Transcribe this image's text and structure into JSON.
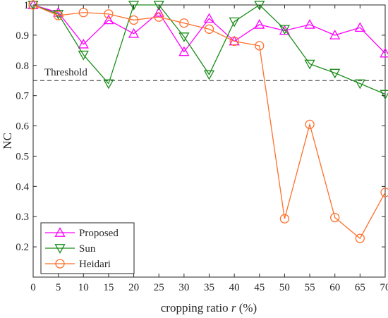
{
  "chart_data": {
    "type": "line",
    "xlabel_prefix": "cropping ratio ",
    "xlabel_var": "r",
    "xlabel_suffix": " (%)",
    "ylabel": "NC",
    "xlim": [
      0,
      70
    ],
    "ylim": [
      0.1,
      1.0
    ],
    "x_ticks": [
      0,
      5,
      10,
      15,
      20,
      25,
      30,
      35,
      40,
      45,
      50,
      55,
      60,
      65,
      70
    ],
    "y_ticks": [
      0.2,
      0.3,
      0.4,
      0.5,
      0.6,
      0.7,
      0.8,
      0.9,
      1.0
    ],
    "y_tick_labels": [
      "0.2",
      "0.3",
      "0.4",
      "0.5",
      "0.6",
      "0.7",
      "0.8",
      "0.9",
      "1"
    ],
    "threshold": {
      "value": 0.75,
      "label": "Threshold"
    },
    "x": [
      0,
      5,
      10,
      15,
      20,
      25,
      30,
      35,
      40,
      45,
      50,
      55,
      60,
      65,
      70
    ],
    "series": [
      {
        "name": "Proposed",
        "color": "#ff00ff",
        "marker": "triangle-up",
        "values": [
          1.0,
          0.975,
          0.87,
          0.95,
          0.905,
          0.975,
          0.845,
          0.955,
          0.88,
          0.935,
          0.915,
          0.935,
          0.9,
          0.925,
          0.84
        ]
      },
      {
        "name": "Sun",
        "color": "#1a8c1a",
        "marker": "triangle-down",
        "values": [
          1.0,
          0.97,
          0.835,
          0.74,
          1.0,
          1.0,
          0.895,
          0.77,
          0.945,
          1.0,
          0.92,
          0.805,
          0.775,
          0.74,
          0.705
        ]
      },
      {
        "name": "Heidari",
        "color": "#ff6f2b",
        "marker": "circle",
        "values": [
          1.0,
          0.965,
          0.975,
          0.97,
          0.95,
          0.96,
          0.94,
          0.92,
          0.88,
          0.865,
          0.293,
          0.605,
          0.297,
          0.228,
          0.38
        ]
      }
    ],
    "legend_position": "bottom-left",
    "grid": false
  }
}
